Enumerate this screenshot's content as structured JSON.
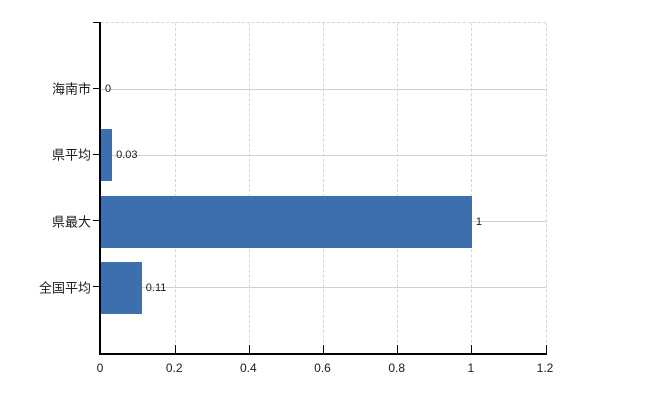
{
  "chart_data": {
    "type": "bar",
    "orientation": "horizontal",
    "title": "",
    "categories": [
      "海南市",
      "県平均",
      "県最大",
      "全国平均"
    ],
    "values": [
      0,
      0.03,
      1,
      0.11
    ],
    "value_labels": [
      "0",
      "0.03",
      "1",
      "0.11"
    ],
    "xlim": [
      0,
      1.2
    ],
    "xticks": [
      0,
      0.2,
      0.4,
      0.6,
      0.8,
      1,
      1.2
    ],
    "xtick_labels": [
      "0",
      "0.2",
      "0.4",
      "0.6",
      "0.8",
      "1",
      "1.2"
    ],
    "legend_position": "none",
    "grid": {
      "vertical_style": "dashed",
      "vertical_color": "#d9d2d9",
      "horizontal_style": "solid",
      "horizontal_color": "#cbd4ca"
    },
    "colors": {
      "bar_fill": "#3d6ead",
      "axis": "#000000",
      "text": "#1a1a1a",
      "background": "#ffffff"
    }
  }
}
